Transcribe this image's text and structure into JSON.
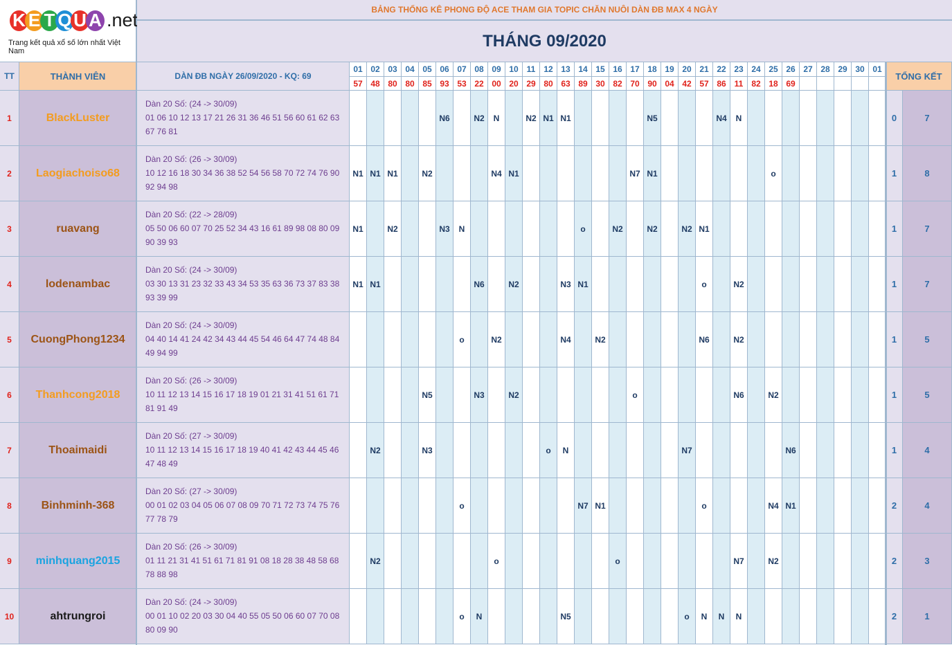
{
  "logo": {
    "letters": [
      "K",
      "E",
      "T",
      "Q",
      "U",
      "A"
    ],
    "letter_colors": [
      "#e8312a",
      "#f39c1f",
      "#2ba84a",
      "#1f8fd6",
      "#e8312a",
      "#8e44ad"
    ],
    "suffix": ".net",
    "tagline": "Trang kết quả xổ số lớn nhất Việt Nam"
  },
  "title": "BẢNG THỐNG KÊ PHONG ĐỘ ACE THAM GIA TOPIC CHĂN NUÔI DÀN ĐB MAX 4 NGÀY",
  "month_title": "THÁNG 09/2020",
  "headers": {
    "tt": "TT",
    "member": "THÀNH VIÊN",
    "dan": "DÀN ĐB NGÀY 26/09/2020 - KQ: 69",
    "summary": "TỔNG KẾT"
  },
  "dates": [
    "01",
    "02",
    "03",
    "04",
    "05",
    "06",
    "07",
    "08",
    "09",
    "10",
    "11",
    "12",
    "13",
    "14",
    "15",
    "16",
    "17",
    "18",
    "19",
    "20",
    "21",
    "22",
    "23",
    "24",
    "25",
    "26",
    "27",
    "28",
    "29",
    "30",
    "01"
  ],
  "results": [
    "57",
    "48",
    "80",
    "80",
    "85",
    "93",
    "53",
    "22",
    "00",
    "20",
    "29",
    "80",
    "63",
    "89",
    "30",
    "82",
    "70",
    "90",
    "04",
    "42",
    "57",
    "86",
    "11",
    "82",
    "18",
    "69",
    "",
    "",
    "",
    "",
    ""
  ],
  "rows": [
    {
      "tt": "1",
      "name": "BlackLuster",
      "name_color": "#f39c1f",
      "dan_title": "Dàn 20 Số: (24 -> 30/09)",
      "dan_numbers": "01 06 10 12 13 17 21 26 31 36 46 51 56 60 61 62 63 67 76 81",
      "marks": [
        "",
        "",
        "",
        "",
        "",
        "N6",
        "",
        "N2",
        "N",
        "",
        "N2",
        "N1",
        "N1",
        "",
        "",
        "",
        "",
        "N5",
        "",
        "",
        "",
        "N4",
        "N",
        "",
        "",
        "",
        "",
        "",
        "",
        "",
        ""
      ],
      "sum_a": "0",
      "sum_b": "7"
    },
    {
      "tt": "2",
      "name": "Laogiachoiso68",
      "name_color": "#f39c1f",
      "dan_title": "Dàn 20 Số: (26 -> 30/09)",
      "dan_numbers": "10 12 16 18 30 34 36 38 52 54 56 58 70 72 74 76 90 92 94 98",
      "marks": [
        "N1",
        "N1",
        "N1",
        "",
        "N2",
        "",
        "",
        "",
        "N4",
        "N1",
        "",
        "",
        "",
        "",
        "",
        "",
        "N7",
        "N1",
        "",
        "",
        "",
        "",
        "",
        "",
        "o",
        "",
        "",
        "",
        "",
        "",
        ""
      ],
      "sum_a": "1",
      "sum_b": "8"
    },
    {
      "tt": "3",
      "name": "ruavang",
      "name_color": "#9c5416",
      "dan_title": "Dàn 20 Số: (22 -> 28/09)",
      "dan_numbers": "05 50 06 60 07 70 25 52 34 43 16 61 89 98 08 80 09 90 39 93",
      "marks": [
        "N1",
        "",
        "N2",
        "",
        "",
        "N3",
        "N",
        "",
        "",
        "",
        "",
        "",
        "",
        "o",
        "",
        "N2",
        "",
        "N2",
        "",
        "N2",
        "N1",
        "",
        "",
        "",
        "",
        "",
        "",
        "",
        "",
        "",
        ""
      ],
      "sum_a": "1",
      "sum_b": "7"
    },
    {
      "tt": "4",
      "name": "lodenambac",
      "name_color": "#9c5416",
      "dan_title": "Dàn 20 Số: (24 -> 30/09)",
      "dan_numbers": "03 30 13 31 23 32 33 43 34 53 35 63 36 73 37 83 38 93 39 99",
      "marks": [
        "N1",
        "N1",
        "",
        "",
        "",
        "",
        "",
        "N6",
        "",
        "N2",
        "",
        "",
        "N3",
        "N1",
        "",
        "",
        "",
        "",
        "",
        "",
        "o",
        "",
        "N2",
        "",
        "",
        "",
        "",
        "",
        "",
        "",
        ""
      ],
      "sum_a": "1",
      "sum_b": "7"
    },
    {
      "tt": "5",
      "name": "CuongPhong1234",
      "name_color": "#9c5416",
      "dan_title": "Dàn 20 Số: (24 -> 30/09)",
      "dan_numbers": "04 40 14 41 24 42 34 43 44 45 54 46 64 47 74 48 84 49 94 99",
      "marks": [
        "",
        "",
        "",
        "",
        "",
        "",
        "o",
        "",
        "N2",
        "",
        "",
        "",
        "N4",
        "",
        "N2",
        "",
        "",
        "",
        "",
        "",
        "N6",
        "",
        "N2",
        "",
        "",
        "",
        "",
        "",
        "",
        "",
        ""
      ],
      "sum_a": "1",
      "sum_b": "5"
    },
    {
      "tt": "6",
      "name": "Thanhcong2018",
      "name_color": "#f39c1f",
      "dan_title": "Dàn 20 Số: (26 -> 30/09)",
      "dan_numbers": "10 11 12 13 14 15 16 17 18 19 01 21 31 41 51 61 71 81 91 49",
      "marks": [
        "",
        "",
        "",
        "",
        "N5",
        "",
        "",
        "N3",
        "",
        "N2",
        "",
        "",
        "",
        "",
        "",
        "",
        "o",
        "",
        "",
        "",
        "",
        "",
        "N6",
        "",
        "N2",
        "",
        "",
        "",
        "",
        "",
        ""
      ],
      "sum_a": "1",
      "sum_b": "5"
    },
    {
      "tt": "7",
      "name": "Thoaimaidi",
      "name_color": "#9c5416",
      "dan_title": "Dàn 20 Số: (27 -> 30/09)",
      "dan_numbers": "10 11 12 13 14 15 16 17 18 19 40 41 42 43 44 45 46 47 48 49",
      "marks": [
        "",
        "N2",
        "",
        "",
        "N3",
        "",
        "",
        "",
        "",
        "",
        "",
        "o",
        "N",
        "",
        "",
        "",
        "",
        "",
        "",
        "N7",
        "",
        "",
        "",
        "",
        "",
        "N6",
        "",
        "",
        "",
        "",
        ""
      ],
      "sum_a": "1",
      "sum_b": "4"
    },
    {
      "tt": "8",
      "name": "Binhminh-368",
      "name_color": "#9c5416",
      "dan_title": "Dàn 20 Số: (27 -> 30/09)",
      "dan_numbers": "00 01 02 03 04 05 06 07 08 09 70 71 72 73 74 75 76 77 78 79",
      "marks": [
        "",
        "",
        "",
        "",
        "",
        "",
        "o",
        "",
        "",
        "",
        "",
        "",
        "",
        "N7",
        "N1",
        "",
        "",
        "",
        "",
        "",
        "o",
        "",
        "",
        "",
        "N4",
        "N1",
        "",
        "",
        "",
        "",
        ""
      ],
      "sum_a": "2",
      "sum_b": "4"
    },
    {
      "tt": "9",
      "name": "minhquang2015",
      "name_color": "#1aa3e0",
      "dan_title": "Dàn 20 Số: (26 -> 30/09)",
      "dan_numbers": "01 11 21 31 41 51 61 71 81 91 08 18 28 38 48 58 68 78 88 98",
      "marks": [
        "",
        "N2",
        "",
        "",
        "",
        "",
        "",
        "",
        "o",
        "",
        "",
        "",
        "",
        "",
        "",
        "o",
        "",
        "",
        "",
        "",
        "",
        "",
        "N7",
        "",
        "N2",
        "",
        "",
        "",
        "",
        "",
        ""
      ],
      "sum_a": "2",
      "sum_b": "3"
    },
    {
      "tt": "10",
      "name": "ahtrungroi",
      "name_color": "#1a1a1a",
      "dan_title": "Dàn 20 Số: (24 -> 30/09)",
      "dan_numbers": "00 01 10 02 20 03 30 04 40 55 05 50 06 60 07 70 08 80 09 90",
      "marks": [
        "",
        "",
        "",
        "",
        "",
        "",
        "o",
        "N",
        "",
        "",
        "",
        "",
        "N5",
        "",
        "",
        "",
        "",
        "",
        "",
        "o",
        "N",
        "N",
        "N",
        "",
        "",
        "",
        "",
        "",
        "",
        "",
        ""
      ],
      "sum_a": "2",
      "sum_b": "1"
    }
  ]
}
